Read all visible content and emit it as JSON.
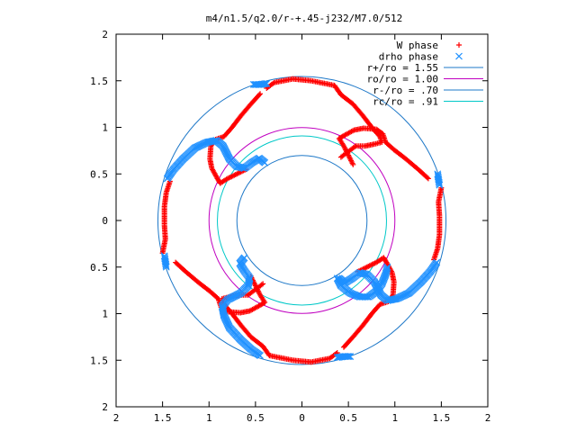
{
  "chart_data": {
    "type": "scatter",
    "title": "m4/n1.5/q2.0/r-+.45-j232/M7.0/512",
    "xlim": [
      -2,
      2
    ],
    "ylim": [
      -2,
      2
    ],
    "xticks": [
      -2,
      -1.5,
      -1,
      -0.5,
      0,
      0.5,
      1,
      1.5,
      2
    ],
    "yticks": [
      -2,
      -1.5,
      -1,
      -0.5,
      0,
      0.5,
      1,
      1.5,
      2
    ],
    "xtick_labels": [
      "2",
      "1.5",
      "1",
      "0.5",
      "0",
      "0.5",
      "1",
      "1.5",
      "2"
    ],
    "ytick_labels": [
      "2",
      "1.5",
      "1",
      "0.5",
      "0",
      "0.5",
      "1",
      "1.5",
      "2"
    ],
    "grid": false,
    "legend_position": "top-right",
    "legend": [
      {
        "label": "W phase",
        "marker": "+",
        "color": "#ff0000"
      },
      {
        "label": "drho phase",
        "marker": "x",
        "color": "#1e90ff"
      },
      {
        "label": "r+/ro = 1.55",
        "color": "#1e78c8"
      },
      {
        "label": "ro/ro = 1.00",
        "color": "#c000c0"
      },
      {
        "label": "r-/ro = .70",
        "color": "#1e78c8"
      },
      {
        "label": "rc/ro = .91",
        "color": "#00c8c8"
      }
    ],
    "circles": [
      {
        "r": 1.55,
        "color": "#1e78c8"
      },
      {
        "r": 1.0,
        "color": "#c000c0"
      },
      {
        "r": 0.7,
        "color": "#1e78c8"
      },
      {
        "r": 0.91,
        "color": "#00c8c8"
      }
    ],
    "series": [
      {
        "name": "W phase",
        "color": "#ff0000",
        "arms": [
          [
            [
              -0.45,
              1.36
            ],
            [
              -0.55,
              1.25
            ],
            [
              -0.66,
              1.12
            ],
            [
              -0.76,
              0.99
            ],
            [
              -0.84,
              0.9
            ],
            [
              -0.93,
              0.87
            ],
            [
              -0.98,
              0.8
            ],
            [
              -0.99,
              0.66
            ],
            [
              -0.97,
              0.56
            ],
            [
              -0.91,
              0.45
            ],
            [
              -0.88,
              0.4
            ],
            [
              -0.8,
              0.45
            ],
            [
              -0.7,
              0.5
            ],
            [
              -0.6,
              0.55
            ]
          ],
          [
            [
              0.38,
              -1.42
            ],
            [
              0.3,
              -1.48
            ],
            [
              0.1,
              -1.52
            ],
            [
              -0.1,
              -1.5
            ],
            [
              -0.35,
              -1.45
            ],
            [
              -0.42,
              -1.35
            ],
            [
              -0.55,
              -1.25
            ],
            [
              -0.66,
              -1.12
            ],
            [
              -0.76,
              -0.99
            ],
            [
              -0.84,
              -0.9
            ],
            [
              -0.86,
              -0.84
            ],
            [
              -0.78,
              -0.82
            ],
            [
              -0.68,
              -0.8
            ],
            [
              -0.58,
              -0.8
            ],
            [
              -0.5,
              -0.74
            ],
            [
              -0.42,
              -0.68
            ]
          ],
          [
            [
              1.36,
              0.45
            ],
            [
              1.25,
              0.55
            ],
            [
              1.12,
              0.66
            ],
            [
              0.99,
              0.76
            ],
            [
              0.9,
              0.84
            ],
            [
              0.87,
              0.93
            ],
            [
              0.8,
              0.98
            ],
            [
              0.66,
              0.99
            ],
            [
              0.56,
              0.97
            ],
            [
              0.45,
              0.91
            ],
            [
              0.4,
              0.88
            ],
            [
              0.45,
              0.8
            ],
            [
              0.5,
              0.7
            ],
            [
              0.55,
              0.6
            ]
          ],
          [
            [
              -0.38,
              1.42
            ],
            [
              -0.3,
              1.48
            ],
            [
              -0.1,
              1.52
            ],
            [
              0.1,
              1.5
            ],
            [
              0.35,
              1.45
            ],
            [
              0.42,
              1.35
            ],
            [
              0.55,
              1.25
            ],
            [
              0.66,
              1.12
            ],
            [
              0.76,
              0.99
            ],
            [
              0.84,
              0.9
            ],
            [
              0.86,
              0.84
            ],
            [
              0.78,
              0.82
            ],
            [
              0.68,
              0.8
            ],
            [
              0.58,
              0.8
            ],
            [
              0.5,
              0.74
            ],
            [
              0.42,
              0.68
            ]
          ],
          [
            [
              0.45,
              -1.36
            ],
            [
              0.55,
              -1.25
            ],
            [
              0.66,
              -1.12
            ],
            [
              0.76,
              -0.99
            ],
            [
              0.84,
              -0.9
            ],
            [
              0.93,
              -0.87
            ],
            [
              0.98,
              -0.8
            ],
            [
              0.99,
              -0.66
            ],
            [
              0.97,
              -0.56
            ],
            [
              0.91,
              -0.45
            ],
            [
              0.88,
              -0.4
            ],
            [
              0.8,
              -0.45
            ],
            [
              0.7,
              -0.5
            ],
            [
              0.6,
              -0.55
            ]
          ],
          [
            [
              -1.36,
              -0.45
            ],
            [
              -1.25,
              -0.55
            ],
            [
              -1.12,
              -0.66
            ],
            [
              -0.99,
              -0.76
            ],
            [
              -0.9,
              -0.84
            ],
            [
              -0.87,
              -0.93
            ],
            [
              -0.8,
              -0.98
            ],
            [
              -0.66,
              -0.99
            ],
            [
              -0.56,
              -0.97
            ],
            [
              -0.45,
              -0.91
            ],
            [
              -0.4,
              -0.88
            ],
            [
              -0.45,
              -0.8
            ],
            [
              -0.5,
              -0.7
            ],
            [
              -0.55,
              -0.6
            ]
          ],
          [
            [
              1.5,
              0.35
            ],
            [
              1.47,
              0.2
            ],
            [
              1.48,
              0.05
            ],
            [
              1.48,
              -0.15
            ],
            [
              1.46,
              -0.3
            ],
            [
              1.42,
              -0.42
            ]
          ],
          [
            [
              -1.5,
              -0.35
            ],
            [
              -1.47,
              -0.2
            ],
            [
              -1.48,
              -0.05
            ],
            [
              -1.48,
              0.15
            ],
            [
              -1.46,
              0.3
            ],
            [
              -1.42,
              0.42
            ]
          ]
        ]
      },
      {
        "name": "drho phase",
        "color": "#1e90ff",
        "arms": [
          [
            [
              -1.45,
              0.45
            ],
            [
              -1.38,
              0.55
            ],
            [
              -1.28,
              0.66
            ],
            [
              -1.15,
              0.78
            ],
            [
              -1.02,
              0.84
            ],
            [
              -0.92,
              0.86
            ],
            [
              -0.85,
              0.8
            ],
            [
              -0.78,
              0.66
            ],
            [
              -0.7,
              0.58
            ],
            [
              -0.62,
              0.56
            ],
            [
              -0.54,
              0.62
            ],
            [
              -0.46,
              0.67
            ],
            [
              -0.4,
              0.62
            ]
          ],
          [
            [
              1.45,
              -0.45
            ],
            [
              1.38,
              -0.55
            ],
            [
              1.28,
              -0.66
            ],
            [
              1.15,
              -0.78
            ],
            [
              1.02,
              -0.84
            ],
            [
              0.92,
              -0.86
            ],
            [
              0.85,
              -0.8
            ],
            [
              0.78,
              -0.66
            ],
            [
              0.7,
              -0.58
            ],
            [
              0.62,
              -0.56
            ],
            [
              0.54,
              -0.62
            ],
            [
              0.46,
              -0.67
            ],
            [
              0.4,
              -0.62
            ]
          ],
          [
            [
              -0.45,
              -1.45
            ],
            [
              -0.55,
              -1.38
            ],
            [
              -0.66,
              -1.28
            ],
            [
              -0.78,
              -1.15
            ],
            [
              -0.84,
              -1.02
            ],
            [
              -0.86,
              -0.92
            ],
            [
              -0.8,
              -0.85
            ],
            [
              -0.66,
              -0.78
            ],
            [
              -0.58,
              -0.7
            ],
            [
              -0.56,
              -0.62
            ],
            [
              -0.62,
              -0.54
            ],
            [
              -0.67,
              -0.46
            ],
            [
              -0.62,
              -0.4
            ]
          ],
          [
            [
              0.38,
              -0.62
            ],
            [
              0.42,
              -0.7
            ],
            [
              0.52,
              -0.78
            ],
            [
              0.62,
              -0.82
            ],
            [
              0.72,
              -0.82
            ],
            [
              0.8,
              -0.76
            ],
            [
              0.86,
              -0.68
            ],
            [
              0.9,
              -0.58
            ],
            [
              0.92,
              -0.5
            ]
          ],
          [
            [
              -0.52,
              1.46
            ],
            [
              -0.45,
              1.46
            ],
            [
              -0.38,
              1.47
            ]
          ],
          [
            [
              0.52,
              -1.46
            ],
            [
              0.45,
              -1.46
            ],
            [
              0.38,
              -1.47
            ]
          ],
          [
            [
              1.46,
              0.5
            ],
            [
              1.47,
              0.44
            ],
            [
              1.48,
              0.38
            ]
          ],
          [
            [
              -1.46,
              -0.5
            ],
            [
              -1.47,
              -0.44
            ],
            [
              -1.48,
              -0.38
            ]
          ]
        ]
      }
    ]
  }
}
